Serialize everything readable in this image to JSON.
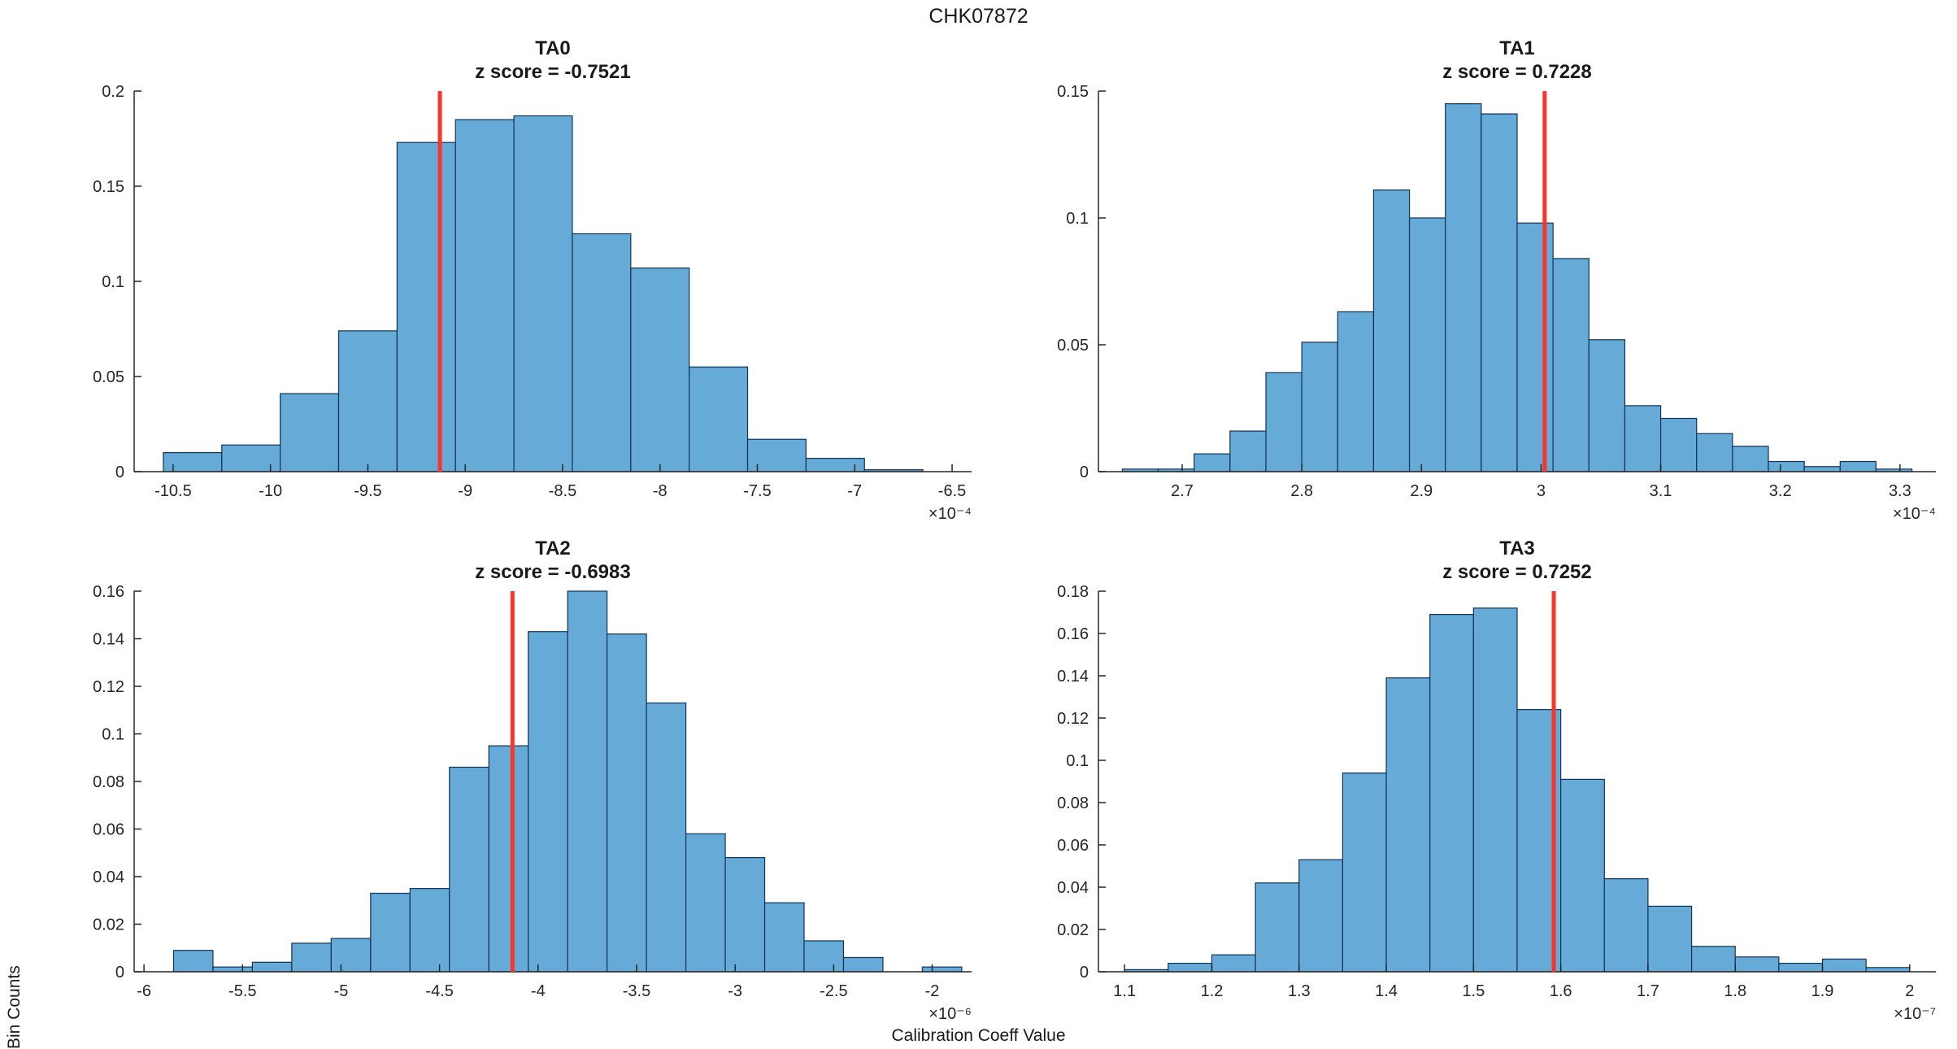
{
  "figure_title": "CHK07872",
  "ylabel_shared": "Bin Counts",
  "xlabel_shared": "Calibration Coeff Value",
  "colors": {
    "bar_face": "#66AAD7",
    "bar_edge": "#113355",
    "zline": "#f8352a",
    "axis": "#262626",
    "text": "#1a1a1a"
  },
  "chart_data": [
    {
      "type": "bar",
      "title": "TA0",
      "subtitle": "z score = -0.7521",
      "exponent_label": "×10⁻⁴",
      "xlim": [
        -10.7,
        -6.4
      ],
      "ylim": [
        0,
        0.2
      ],
      "xticks": [
        -10.5,
        -10,
        -9.5,
        -9,
        -8.5,
        -8,
        -7.5,
        -7,
        -6.5
      ],
      "yticks": [
        0,
        0.05,
        0.1,
        0.15,
        0.2
      ],
      "bin_edges": [
        -10.55,
        -10.25,
        -9.95,
        -9.65,
        -9.35,
        -9.05,
        -8.75,
        -8.45,
        -8.15,
        -7.85,
        -7.55,
        -7.25,
        -6.95,
        -6.65
      ],
      "values": [
        0.01,
        0.014,
        0.041,
        0.074,
        0.173,
        0.185,
        0.187,
        0.125,
        0.107,
        0.055,
        0.017,
        0.007,
        0.001
      ],
      "z_line_x": -9.13
    },
    {
      "type": "bar",
      "title": "TA1",
      "subtitle": "z score = 0.7228",
      "exponent_label": "×10⁻⁴",
      "xlim": [
        2.63,
        3.33
      ],
      "ylim": [
        0,
        0.15
      ],
      "xticks": [
        2.7,
        2.8,
        2.9,
        3,
        3.1,
        3.2,
        3.3
      ],
      "yticks": [
        0,
        0.05,
        0.1,
        0.15
      ],
      "bin_edges": [
        2.65,
        2.68,
        2.71,
        2.74,
        2.77,
        2.8,
        2.83,
        2.86,
        2.89,
        2.92,
        2.95,
        2.98,
        3.01,
        3.04,
        3.07,
        3.1,
        3.13,
        3.16,
        3.19,
        3.22,
        3.25,
        3.28,
        3.31
      ],
      "values": [
        0.001,
        0.001,
        0.007,
        0.016,
        0.039,
        0.051,
        0.063,
        0.111,
        0.1,
        0.145,
        0.141,
        0.098,
        0.084,
        0.052,
        0.026,
        0.021,
        0.015,
        0.01,
        0.004,
        0.002,
        0.004,
        0.001
      ],
      "z_line_x": 3.003
    },
    {
      "type": "bar",
      "title": "TA2",
      "subtitle": "z score = -0.6983",
      "exponent_label": "×10⁻⁶",
      "xlim": [
        -6.05,
        -1.8
      ],
      "ylim": [
        0,
        0.16
      ],
      "xticks": [
        -6,
        -5.5,
        -5,
        -4.5,
        -4,
        -3.5,
        -3,
        -2.5,
        -2
      ],
      "yticks": [
        0,
        0.02,
        0.04,
        0.06,
        0.08,
        0.1,
        0.12,
        0.14,
        0.16
      ],
      "bin_edges": [
        -5.85,
        -5.65,
        -5.45,
        -5.25,
        -5.05,
        -4.85,
        -4.65,
        -4.45,
        -4.25,
        -4.05,
        -3.85,
        -3.65,
        -3.45,
        -3.25,
        -3.05,
        -2.85,
        -2.65,
        -2.45,
        -2.25,
        -2.05,
        -1.85
      ],
      "values": [
        0.009,
        0.002,
        0.004,
        0.012,
        0.014,
        0.033,
        0.035,
        0.086,
        0.095,
        0.143,
        0.16,
        0.142,
        0.113,
        0.058,
        0.048,
        0.029,
        0.013,
        0.006,
        0,
        0.002
      ],
      "z_line_x": -4.13
    },
    {
      "type": "bar",
      "title": "TA3",
      "subtitle": "z score = 0.7252",
      "exponent_label": "×10⁻⁷",
      "xlim": [
        1.07,
        2.03
      ],
      "ylim": [
        0,
        0.18
      ],
      "xticks": [
        1.1,
        1.2,
        1.3,
        1.4,
        1.5,
        1.6,
        1.7,
        1.8,
        1.9,
        2
      ],
      "yticks": [
        0,
        0.02,
        0.04,
        0.06,
        0.08,
        0.1,
        0.12,
        0.14,
        0.16,
        0.18
      ],
      "bin_edges": [
        1.1,
        1.15,
        1.2,
        1.25,
        1.3,
        1.35,
        1.4,
        1.45,
        1.5,
        1.55,
        1.6,
        1.65,
        1.7,
        1.75,
        1.8,
        1.85,
        1.9,
        1.95,
        2.0
      ],
      "values": [
        0.001,
        0.004,
        0.008,
        0.042,
        0.053,
        0.094,
        0.139,
        0.169,
        0.172,
        0.124,
        0.091,
        0.044,
        0.031,
        0.012,
        0.007,
        0.004,
        0.006,
        0.002
      ],
      "z_line_x": 1.592
    }
  ]
}
